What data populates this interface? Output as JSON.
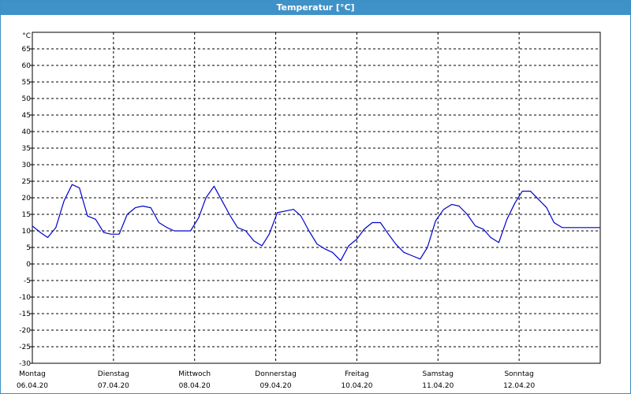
{
  "window": {
    "title": "Temperatur [°C]"
  },
  "chart_data": {
    "type": "line",
    "title": "Temperatur [°C]",
    "unit_label": "°C",
    "ylim": [
      -30,
      70
    ],
    "yticks": [
      -30,
      -25,
      -20,
      -15,
      -10,
      -5,
      0,
      5,
      10,
      15,
      20,
      25,
      30,
      35,
      40,
      45,
      50,
      55,
      60,
      65
    ],
    "xlim": [
      0,
      7
    ],
    "grid": true,
    "line_color": "#0000cc",
    "days": [
      {
        "x": 0,
        "day": "Montag",
        "date": "06.04.20"
      },
      {
        "x": 1,
        "day": "Dienstag",
        "date": "07.04.20"
      },
      {
        "x": 2,
        "day": "Mittwoch",
        "date": "08.04.20"
      },
      {
        "x": 3,
        "day": "Donnerstag",
        "date": "09.04.20"
      },
      {
        "x": 4,
        "day": "Freitag",
        "date": "10.04.20"
      },
      {
        "x": 5,
        "day": "Samstag",
        "date": "11.04.20"
      },
      {
        "x": 6,
        "day": "Sonntag",
        "date": "12.04.20"
      }
    ],
    "series": [
      {
        "x": [
          0.0,
          0.1,
          0.19,
          0.29,
          0.39,
          0.49,
          0.58,
          0.68,
          0.78,
          0.88,
          0.97,
          1.07,
          1.17,
          1.27,
          1.36,
          1.46,
          1.56,
          1.66,
          1.75,
          1.85,
          1.95,
          2.05,
          2.14,
          2.24,
          2.34,
          2.44,
          2.53,
          2.63,
          2.73,
          2.83,
          2.92,
          3.02,
          3.12,
          3.22,
          3.31,
          3.41,
          3.51,
          3.61,
          3.7,
          3.8,
          3.9,
          4.0,
          4.09,
          4.19,
          4.29,
          4.39,
          4.48,
          4.58,
          4.68,
          4.78,
          4.87,
          4.97,
          5.07,
          5.17,
          5.26,
          5.36,
          5.46,
          5.56,
          5.65,
          5.75,
          5.85,
          5.95,
          6.04,
          6.14,
          6.24,
          6.34,
          6.43,
          6.53,
          6.63,
          6.73,
          6.82,
          6.92,
          7.0
        ],
        "values": [
          11.5,
          9.5,
          8.0,
          11.0,
          19.0,
          24.0,
          23.0,
          14.5,
          13.5,
          9.5,
          9.0,
          9.0,
          15.0,
          17.0,
          17.5,
          17.0,
          12.5,
          11.0,
          10.0,
          10.0,
          10.0,
          14.0,
          20.0,
          23.5,
          19.0,
          14.5,
          11.0,
          10.0,
          7.0,
          5.5,
          9.0,
          15.5,
          16.0,
          16.5,
          14.5,
          10.0,
          6.0,
          4.5,
          3.5,
          1.0,
          5.5,
          7.5,
          10.5,
          12.5,
          12.5,
          9.0,
          6.0,
          3.5,
          2.5,
          1.5,
          5.0,
          13.0,
          16.5,
          18.0,
          17.5,
          15.0,
          11.5,
          10.5,
          8.0,
          6.5,
          13.5,
          18.5,
          22.0,
          22.0,
          19.5,
          17.0,
          12.5,
          11.0,
          11.0,
          11.0,
          11.0,
          11.0,
          11.0
        ]
      }
    ]
  }
}
